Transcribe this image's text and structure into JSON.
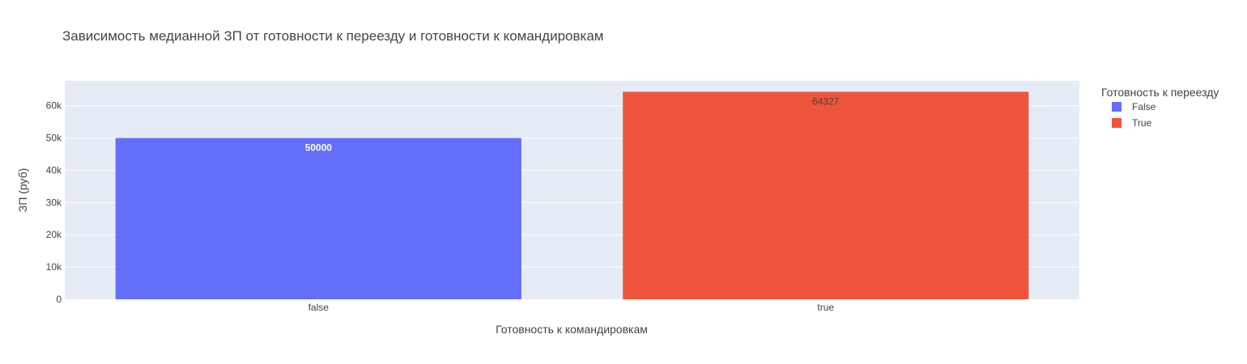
{
  "chart_data": {
    "type": "bar",
    "title": "Зависимость медианной ЗП от готовности к переезду и готовности к командировкам",
    "xlabel": "Готовность к командировкам",
    "ylabel": "ЗП (руб)",
    "categories": [
      "false",
      "true"
    ],
    "series": [
      {
        "name": "False",
        "color": "#636efa",
        "values": [
          50000,
          null
        ],
        "label_color": "#ffffff"
      },
      {
        "name": "True",
        "color": "#ef553b",
        "values": [
          null,
          64327
        ],
        "label_color": "#444444"
      }
    ],
    "ylim": [
      0,
      67700
    ],
    "yticks": [
      0,
      10000,
      20000,
      30000,
      40000,
      50000,
      60000
    ],
    "ytick_labels": [
      "0",
      "10k",
      "20k",
      "30k",
      "40k",
      "50k",
      "60k"
    ],
    "grid": true,
    "legend": {
      "title": "Готовность к переезду",
      "placement": "top-right"
    },
    "plot_background": "#e5ecf6",
    "grid_color": "#ffffff"
  }
}
